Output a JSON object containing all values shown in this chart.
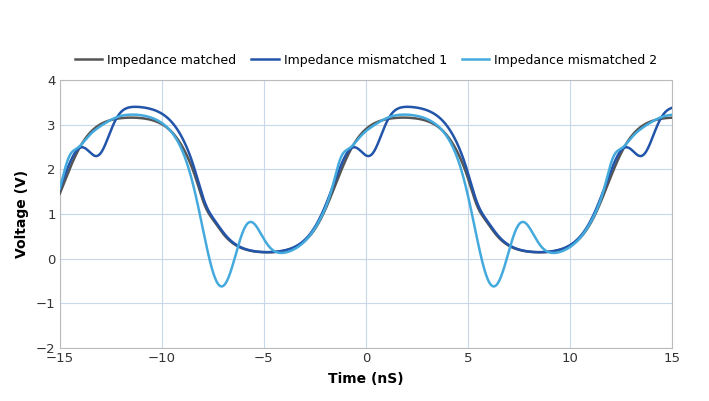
{
  "xlabel": "Time (nS)",
  "ylabel": "Voltage (V)",
  "xlim": [
    -15,
    15
  ],
  "ylim": [
    -2,
    4
  ],
  "yticks": [
    -2,
    -1,
    0,
    1,
    2,
    3,
    4
  ],
  "xticks": [
    -15,
    -10,
    -5,
    0,
    5,
    10,
    15
  ],
  "legend": [
    {
      "label": "Impedance mismatched 1",
      "color": "#2255aa",
      "lw": 1.8
    },
    {
      "label": "Impedance mismatched 2",
      "color": "#44aadd",
      "lw": 1.8
    },
    {
      "label": "Impedance matched",
      "color": "#555555",
      "lw": 1.8
    }
  ],
  "grid_color": "#c8d8e8",
  "background_color": "#ffffff",
  "period": 13.33,
  "phase_shift": 1.67
}
